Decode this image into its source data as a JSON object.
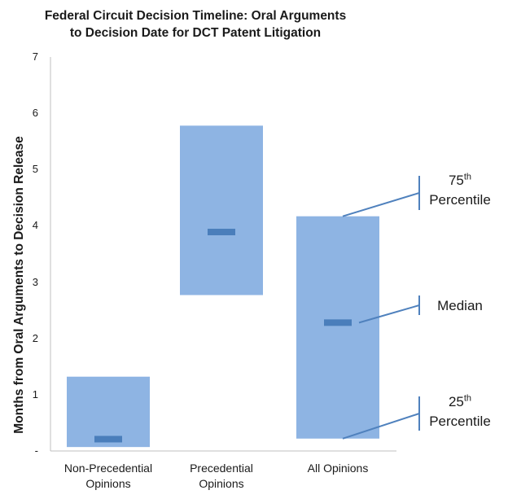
{
  "chart_data": {
    "type": "floating-bar",
    "title": [
      "Federal Circuit Decision Timeline: Oral Arguments",
      "to Decision Date for DCT Patent Litigation"
    ],
    "ylabel": "Months from Oral Arguments to Decision Release",
    "xlabel": "",
    "ylim": [
      0,
      7
    ],
    "yticks": [
      "-",
      "1",
      "2",
      "3",
      "4",
      "5",
      "6",
      "7"
    ],
    "categories": [
      [
        "Non-Precedential",
        "Opinions"
      ],
      [
        "Precedential",
        "Opinions"
      ],
      [
        "All  Opinions"
      ]
    ],
    "series": [
      {
        "name": "25th Percentile",
        "values": [
          0.07,
          2.77,
          0.22
        ]
      },
      {
        "name": "75th Percentile",
        "values": [
          1.32,
          5.78,
          4.17
        ]
      },
      {
        "name": "Median",
        "values": [
          0.21,
          3.89,
          2.28
        ]
      }
    ],
    "annotations": [
      {
        "base": "75",
        "sup": "th",
        "word": "Percentile",
        "series": "75th Percentile"
      },
      {
        "text": "Median",
        "series": "Median"
      },
      {
        "base": "25",
        "sup": "th",
        "word": "Percentile",
        "series": "25th Percentile"
      }
    ],
    "colors": {
      "box": "#8eb4e3",
      "median": "#4a7ebb",
      "callout": "#4f81bd",
      "axis": "#bfbfbf"
    }
  }
}
